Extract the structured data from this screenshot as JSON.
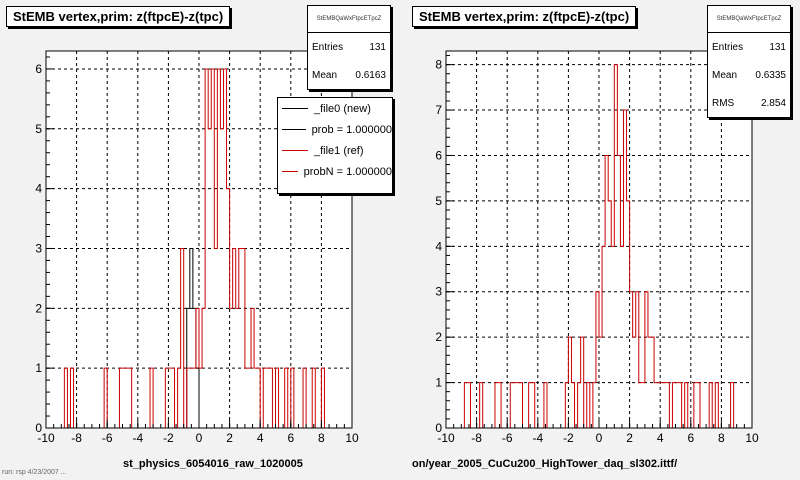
{
  "footer": "run: rsp  4/23/2007 ...",
  "colors": {
    "new": "#000000",
    "ref": "#cc0000",
    "grid": "#000000",
    "frame": "#000000"
  },
  "left": {
    "title": "StEMB  vertex,prim: z(ftpcE)-z(tpc)",
    "stats_name": "StEMBQaWxFtpcETpcZ",
    "stats": [
      {
        "label": "Entries",
        "value": "131"
      },
      {
        "label": "Mean",
        "value": "0.6163"
      }
    ],
    "legend": [
      {
        "label": "_file0 (new)",
        "color": "#000000"
      },
      {
        "label": "prob = 1.000000",
        "color": "#000000"
      },
      {
        "label": "_file1 (ref)",
        "color": "#cc0000"
      },
      {
        "label": "probN = 1.000000",
        "color": "#cc0000"
      }
    ],
    "file_label": "st_physics_6054016_raw_1020005"
  },
  "right": {
    "title": "StEMB  vertex,prim: z(ftpcE)-z(tpc)",
    "stats_name": "StEMBQaWxFtpcETpcZ",
    "stats": [
      {
        "label": "Entries",
        "value": "131"
      },
      {
        "label": "Mean",
        "value": "0.6335"
      },
      {
        "label": "RMS",
        "value": "2.854"
      }
    ],
    "file_label": "on/year_2005_CuCu200_HighTower_daq_sl302.ittf/"
  },
  "chart_data": [
    {
      "type": "step",
      "xlim": [
        -10,
        10
      ],
      "ylim": [
        0,
        6.3
      ],
      "x_ticks": [
        -10,
        -8,
        -6,
        -4,
        -2,
        0,
        2,
        4,
        6,
        8,
        10
      ],
      "y_ticks": [
        0,
        1,
        2,
        3,
        4,
        5,
        6
      ],
      "grid": true,
      "legend_position": "top-right",
      "series": [
        {
          "name": "_file0 (new)",
          "color": "#000000",
          "points": [
            [
              -0.8,
              2
            ],
            [
              -0.6,
              3
            ],
            [
              -0.4,
              2
            ],
            [
              -0.2,
              1
            ],
            [
              0.0,
              0
            ]
          ]
        },
        {
          "name": "_file1 (ref)",
          "color": "#cc0000",
          "points": [
            [
              -8.8,
              1
            ],
            [
              -8.4,
              1
            ],
            [
              -6.2,
              1
            ],
            [
              -5.2,
              1
            ],
            [
              -5.0,
              1
            ],
            [
              -4.8,
              1
            ],
            [
              -4.6,
              1
            ],
            [
              -3.2,
              1
            ],
            [
              -2.2,
              1
            ],
            [
              -2.0,
              1
            ],
            [
              -1.8,
              1
            ],
            [
              -1.4,
              1
            ],
            [
              -1.2,
              3
            ],
            [
              -0.8,
              1
            ],
            [
              -0.6,
              1
            ],
            [
              -0.4,
              1
            ],
            [
              -0.2,
              2
            ],
            [
              0.0,
              1
            ],
            [
              0.2,
              2
            ],
            [
              0.4,
              6
            ],
            [
              0.6,
              5
            ],
            [
              0.8,
              6
            ],
            [
              1.0,
              3
            ],
            [
              1.2,
              6
            ],
            [
              1.4,
              5
            ],
            [
              1.6,
              6
            ],
            [
              1.8,
              4
            ],
            [
              2.0,
              2
            ],
            [
              2.2,
              3
            ],
            [
              2.4,
              2
            ],
            [
              2.6,
              3
            ],
            [
              2.8,
              3
            ],
            [
              3.0,
              1
            ],
            [
              3.2,
              1
            ],
            [
              3.4,
              2
            ],
            [
              3.6,
              1
            ],
            [
              3.8,
              1
            ],
            [
              4.2,
              1
            ],
            [
              4.4,
              1
            ],
            [
              4.6,
              1
            ],
            [
              5.0,
              1
            ],
            [
              5.6,
              1
            ],
            [
              6.0,
              1
            ],
            [
              6.8,
              1
            ],
            [
              7.4,
              1
            ],
            [
              8.0,
              1
            ]
          ]
        }
      ]
    },
    {
      "type": "step",
      "xlim": [
        -10,
        10
      ],
      "ylim": [
        0,
        8.3
      ],
      "x_ticks": [
        -10,
        -8,
        -6,
        -4,
        -2,
        0,
        2,
        4,
        6,
        8,
        10
      ],
      "y_ticks": [
        0,
        1,
        2,
        3,
        4,
        5,
        6,
        7,
        8
      ],
      "grid": true,
      "series": [
        {
          "name": "",
          "color": "#cc0000",
          "points": [
            [
              -8.8,
              1
            ],
            [
              -8.6,
              1
            ],
            [
              -7.8,
              1
            ],
            [
              -6.8,
              1
            ],
            [
              -6.6,
              1
            ],
            [
              -5.8,
              1
            ],
            [
              -5.6,
              1
            ],
            [
              -5.4,
              1
            ],
            [
              -5.2,
              1
            ],
            [
              -4.6,
              1
            ],
            [
              -4.4,
              1
            ],
            [
              -3.6,
              1
            ],
            [
              -2.2,
              1
            ],
            [
              -2.0,
              2
            ],
            [
              -1.8,
              1
            ],
            [
              -1.4,
              1
            ],
            [
              -1.2,
              2
            ],
            [
              -0.8,
              1
            ],
            [
              -0.4,
              1
            ],
            [
              -0.2,
              3
            ],
            [
              0.0,
              2
            ],
            [
              0.2,
              4
            ],
            [
              0.4,
              6
            ],
            [
              0.6,
              5
            ],
            [
              0.8,
              4
            ],
            [
              1.0,
              8
            ],
            [
              1.2,
              6
            ],
            [
              1.4,
              4
            ],
            [
              1.6,
              7
            ],
            [
              1.8,
              5
            ],
            [
              2.0,
              3
            ],
            [
              2.2,
              2
            ],
            [
              2.4,
              3
            ],
            [
              2.6,
              1
            ],
            [
              2.8,
              1
            ],
            [
              3.0,
              3
            ],
            [
              3.2,
              2
            ],
            [
              3.4,
              2
            ],
            [
              3.6,
              1
            ],
            [
              3.8,
              1
            ],
            [
              4.0,
              1
            ],
            [
              4.2,
              1
            ],
            [
              4.4,
              1
            ],
            [
              4.8,
              1
            ],
            [
              5.0,
              1
            ],
            [
              5.2,
              1
            ],
            [
              5.6,
              1
            ],
            [
              6.2,
              1
            ],
            [
              6.4,
              1
            ],
            [
              7.2,
              1
            ],
            [
              7.6,
              1
            ],
            [
              8.6,
              1
            ]
          ]
        }
      ]
    }
  ]
}
